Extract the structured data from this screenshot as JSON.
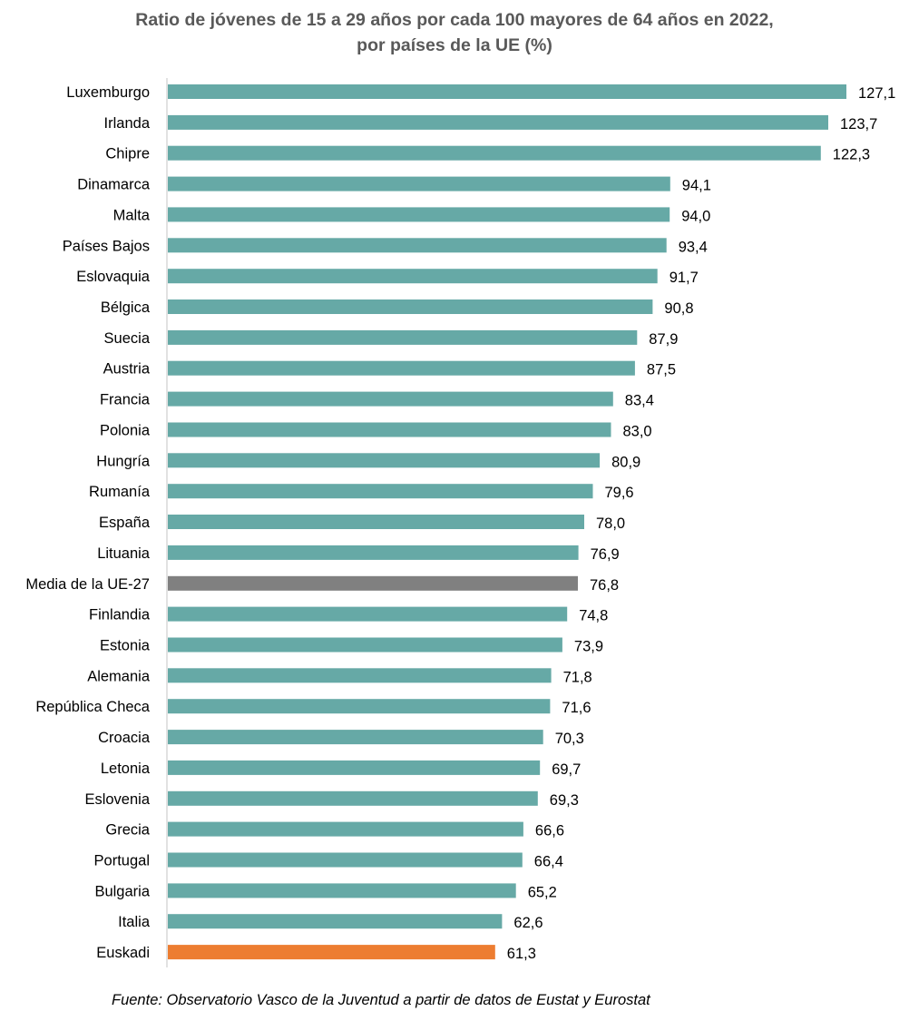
{
  "chart_data": {
    "type": "bar",
    "orientation": "horizontal",
    "title": [
      "Ratio de jóvenes de 15 a 29 años por cada 100 mayores de 64 años en 2022,",
      "por países de la UE (%)"
    ],
    "xlabel": "",
    "ylabel": "",
    "xlim": [
      0,
      127.1
    ],
    "grid": false,
    "legend": "none",
    "categories": [
      "Luxemburgo",
      "Irlanda",
      "Chipre",
      "Dinamarca",
      "Malta",
      "Países Bajos",
      "Eslovaquia",
      "Bélgica",
      "Suecia",
      "Austria",
      "Francia",
      "Polonia",
      "Hungría",
      "Rumanía",
      "España",
      "Lituania",
      "Media de la UE-27",
      "Finlandia",
      "Estonia",
      "Alemania",
      "República Checa",
      "Croacia",
      "Letonia",
      "Eslovenia",
      "Grecia",
      "Portugal",
      "Bulgaria",
      "Italia",
      "Euskadi"
    ],
    "values": [
      127.1,
      123.7,
      122.3,
      94.1,
      94.0,
      93.4,
      91.7,
      90.8,
      87.9,
      87.5,
      83.4,
      83.0,
      80.9,
      79.6,
      78.0,
      76.9,
      76.8,
      74.8,
      73.9,
      71.8,
      71.6,
      70.3,
      69.7,
      69.3,
      66.6,
      66.4,
      65.2,
      62.6,
      61.3
    ],
    "data_labels": [
      "127,1",
      "123,7",
      "122,3",
      "94,1",
      "94,0",
      "93,4",
      "91,7",
      "90,8",
      "87,9",
      "87,5",
      "83,4",
      "83,0",
      "80,9",
      "79,6",
      "78,0",
      "76,9",
      "76,8",
      "74,8",
      "73,9",
      "71,8",
      "71,6",
      "70,3",
      "69,7",
      "69,3",
      "66,6",
      "66,4",
      "65,2",
      "62,6",
      "61,3"
    ],
    "colors": {
      "default": "#66A9A6",
      "Media de la UE-27": "#808080",
      "Euskadi": "#ED7D31"
    },
    "axis_color": "#D9D9D9"
  },
  "source": "Fuente: Observatorio Vasco de la Juventud a partir de datos de Eustat y Eurostat"
}
